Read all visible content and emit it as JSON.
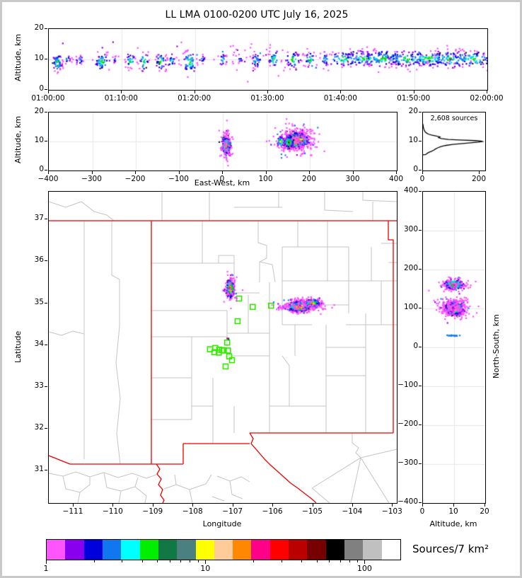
{
  "title": "LL LMA 0100-0200 UTC July 16, 2025",
  "colors": {
    "density_palette": [
      "#ff4dff",
      "#9100ee",
      "#0000dd",
      "#1a7cf0",
      "#00e0e0",
      "#00dd00",
      "#ffe800",
      "#ff8c00",
      "#ee1111"
    ],
    "state_border": "#ee0000",
    "county_line": "#c4c4c4",
    "station_marker": "#33ee00",
    "grid_line": "#e7e7e7",
    "frame": "#000000"
  },
  "colorbar": {
    "label": "Sources/7 km²",
    "scale": "log",
    "min": 1,
    "max": 166,
    "major_ticks": [
      1,
      10,
      100
    ],
    "major_labels": [
      "1",
      "10",
      "100"
    ],
    "minor_ticks": [
      2,
      3,
      4,
      5,
      6,
      7,
      8,
      9,
      20,
      30,
      40,
      50,
      60,
      70,
      80,
      90
    ],
    "segment_colors": [
      "#ff55ff",
      "#8800ee",
      "#0000dd",
      "#1177ee",
      "#00ffff",
      "#00ee00",
      "#117744",
      "#4a8080",
      "#ffff00",
      "#ffcc99",
      "#ff8800",
      "#ff0088",
      "#ff0000",
      "#bb0000",
      "#770000",
      "#000000",
      "#808080",
      "#c0c0c0",
      "#ffffff"
    ]
  },
  "chart_data": [
    {
      "id": "time-height-panel",
      "type": "scatter",
      "xlim": [
        0,
        60
      ],
      "ylim": [
        0,
        20
      ],
      "xticks": {
        "values": [
          0,
          10,
          20,
          30,
          40,
          50,
          60
        ],
        "labels": [
          "01:00:00",
          "01:10:00",
          "01:20:00",
          "01:30:00",
          "01:40:00",
          "01:50:00",
          "02:00:00"
        ]
      },
      "yticks": {
        "values": [
          0,
          10,
          20
        ],
        "labels": [
          "0",
          "10",
          "20"
        ]
      },
      "ylabel": "Altitude, km",
      "grid": {
        "x": [
          10,
          20,
          30,
          40,
          50
        ],
        "y": [
          10
        ]
      },
      "clusters": [
        {
          "x": 30,
          "y": 10.2,
          "sx": 16,
          "sy": 2.6,
          "n": 130,
          "kind": "halo"
        },
        {
          "x": 1.2,
          "y": 8.8,
          "sx": 0.3,
          "sy": 1.7,
          "n": 55,
          "cap": 5
        },
        {
          "x": 2.5,
          "y": 10,
          "sx": 0.3,
          "sy": 0.7,
          "n": 10,
          "cap": 3
        },
        {
          "x": 4.2,
          "y": 9.8,
          "sx": 0.25,
          "sy": 0.9,
          "n": 16,
          "cap": 4
        },
        {
          "x": 7.3,
          "y": 9.3,
          "sx": 0.5,
          "sy": 1.4,
          "n": 45,
          "cap": 5
        },
        {
          "x": 9,
          "y": 10,
          "sx": 0.15,
          "sy": 0.5,
          "n": 8,
          "cap": 3
        },
        {
          "x": 11.2,
          "y": 9.4,
          "sx": 0.3,
          "sy": 1.3,
          "n": 28,
          "cap": 5
        },
        {
          "x": 13,
          "y": 9.4,
          "sx": 0.35,
          "sy": 1.5,
          "n": 30,
          "cap": 5
        },
        {
          "x": 15.3,
          "y": 9.2,
          "sx": 0.4,
          "sy": 1.4,
          "n": 35,
          "cap": 5
        },
        {
          "x": 16.8,
          "y": 9.6,
          "sx": 0.25,
          "sy": 1.1,
          "n": 18,
          "cap": 4
        },
        {
          "x": 19.3,
          "y": 9,
          "sx": 0.5,
          "sy": 1.9,
          "n": 55,
          "cap": 5
        },
        {
          "x": 21,
          "y": 10.1,
          "sx": 0.2,
          "sy": 0.6,
          "n": 8,
          "cap": 3
        },
        {
          "x": 23.8,
          "y": 9.9,
          "sx": 0.3,
          "sy": 1,
          "n": 18,
          "cap": 4
        },
        {
          "x": 26.2,
          "y": 10,
          "sx": 0.2,
          "sy": 0.6,
          "n": 7,
          "cap": 3
        },
        {
          "x": 28.4,
          "y": 9.6,
          "sx": 0.4,
          "sy": 1.2,
          "n": 28,
          "cap": 4
        },
        {
          "x": 30.8,
          "y": 9.9,
          "sx": 0.4,
          "sy": 1.4,
          "n": 32,
          "cap": 5
        },
        {
          "x": 33.4,
          "y": 9.9,
          "sx": 0.5,
          "sy": 1.5,
          "n": 42,
          "cap": 5
        },
        {
          "x": 35.8,
          "y": 9.9,
          "sx": 0.4,
          "sy": 1.2,
          "n": 30,
          "cap": 5
        },
        {
          "x": 37.8,
          "y": 10,
          "sx": 0.3,
          "sy": 1,
          "n": 22,
          "cap": 4
        },
        {
          "x": 40.5,
          "y": 10.2,
          "sx": 1.2,
          "sy": 1.2,
          "n": 60,
          "cap": 5
        },
        {
          "x": 43,
          "y": 10.3,
          "sx": 1.5,
          "sy": 1.2,
          "n": 80,
          "cap": 5
        },
        {
          "x": 46,
          "y": 10.3,
          "sx": 1.5,
          "sy": 1.3,
          "n": 85,
          "cap": 5
        },
        {
          "x": 49,
          "y": 10.2,
          "sx": 1.5,
          "sy": 1.3,
          "n": 85,
          "cap": 5
        },
        {
          "x": 52,
          "y": 10.2,
          "sx": 1.5,
          "sy": 1.3,
          "n": 90,
          "cap": 5
        },
        {
          "x": 55,
          "y": 10.1,
          "sx": 1.5,
          "sy": 1.4,
          "n": 90,
          "cap": 5
        },
        {
          "x": 58,
          "y": 10.1,
          "sx": 1.4,
          "sy": 1.4,
          "n": 85,
          "cap": 5
        }
      ]
    },
    {
      "id": "eastwest-height-panel",
      "type": "scatter",
      "xlim": [
        -400,
        400
      ],
      "ylim": [
        0,
        20
      ],
      "xticks": {
        "values": [
          -400,
          -300,
          -200,
          -100,
          0,
          100,
          200,
          300,
          400
        ],
        "labels": [
          "−400",
          "−300",
          "−200",
          "−100",
          "0",
          "100",
          "200",
          "300",
          "400"
        ]
      },
      "yticks": {
        "values": [
          0,
          10,
          20
        ],
        "labels": [
          "0",
          "10",
          "20"
        ]
      },
      "xlabel": "East-West, km",
      "ylabel": "Altitude, km",
      "grid": {
        "x": [
          -300,
          -200,
          -100,
          0,
          100,
          200,
          300
        ],
        "y": [
          10
        ]
      },
      "clusters": [
        {
          "x": 8,
          "y": 8.7,
          "sx": 5,
          "sy": 1.5,
          "n": 240,
          "cap": 7
        },
        {
          "x": 8,
          "y": 9.4,
          "sx": 8,
          "sy": 3.4,
          "n": 70,
          "kind": "halo"
        },
        {
          "x": 170,
          "y": 10.4,
          "sx": 14,
          "sy": 1.3,
          "n": 650,
          "cap": 8
        },
        {
          "x": 168,
          "y": 10.5,
          "sx": 24,
          "sy": 2.6,
          "n": 220,
          "kind": "halo"
        },
        {
          "x": 133,
          "y": 10,
          "sx": 4,
          "sy": 0.9,
          "n": 45,
          "cap": 6
        },
        {
          "x": 152,
          "y": 9.8,
          "sx": 6,
          "sy": 1.2,
          "n": 80,
          "cap": 6
        }
      ]
    },
    {
      "id": "altitude-histogram-panel",
      "type": "line",
      "annotation": "2,608 sources",
      "total_sources": 2608,
      "xlim": [
        0,
        220
      ],
      "ylim": [
        0,
        20
      ],
      "xticks": {
        "values": [
          0,
          200
        ],
        "labels": [
          "0",
          "200"
        ]
      },
      "yticks": {
        "values": [
          0,
          10,
          20
        ],
        "labels": [
          "0",
          "10",
          "20"
        ]
      },
      "grid": {
        "x": [],
        "y": []
      },
      "points_count_alt": [
        [
          0,
          5.4
        ],
        [
          10,
          5.5
        ],
        [
          12,
          5.7
        ],
        [
          16,
          6.0
        ],
        [
          22,
          6.3
        ],
        [
          30,
          6.6
        ],
        [
          38,
          7.0
        ],
        [
          44,
          7.4
        ],
        [
          52,
          7.8
        ],
        [
          62,
          8.2
        ],
        [
          78,
          8.6
        ],
        [
          105,
          9.0
        ],
        [
          140,
          9.3
        ],
        [
          175,
          9.6
        ],
        [
          195,
          9.8
        ],
        [
          210,
          10.0
        ],
        [
          205,
          10.15
        ],
        [
          185,
          10.3
        ],
        [
          130,
          10.5
        ],
        [
          90,
          10.7
        ],
        [
          65,
          11.0
        ],
        [
          55,
          11.3
        ],
        [
          60,
          11.6
        ],
        [
          45,
          11.9
        ],
        [
          30,
          12.2
        ],
        [
          20,
          12.5
        ],
        [
          13,
          12.9
        ],
        [
          8,
          13.3
        ],
        [
          5,
          13.8
        ],
        [
          3,
          14.3
        ],
        [
          1,
          15.0
        ],
        [
          0,
          16.0
        ]
      ]
    },
    {
      "id": "map-panel",
      "type": "scatter",
      "xlim": [
        -111.62,
        -102.9
      ],
      "ylim": [
        30.23,
        37.66
      ],
      "xticks": {
        "values": [
          -111,
          -110,
          -109,
          -108,
          -107,
          -106,
          -105,
          -104,
          -103
        ],
        "labels": [
          "−111",
          "−110",
          "−109",
          "−108",
          "−107",
          "−106",
          "−105",
          "−104",
          "−103"
        ]
      },
      "yticks": {
        "values": [
          31,
          32,
          33,
          34,
          35,
          36,
          37
        ],
        "labels": [
          "31",
          "32",
          "33",
          "34",
          "35",
          "36",
          "37"
        ]
      },
      "xlabel": "Longitude",
      "ylabel": "Latitude",
      "grid": {
        "x": [],
        "y": []
      },
      "clusters": [
        {
          "x": -107.07,
          "y": 35.35,
          "sx": 0.05,
          "sy": 0.11,
          "n": 200,
          "cap": 8
        },
        {
          "x": -107.07,
          "y": 35.3,
          "sx": 0.1,
          "sy": 0.18,
          "n": 50,
          "kind": "halo"
        },
        {
          "x": -105.35,
          "y": 34.92,
          "sx": 0.14,
          "sy": 0.06,
          "n": 450,
          "cap": 8
        },
        {
          "x": -105.02,
          "y": 35.0,
          "sx": 0.1,
          "sy": 0.045,
          "n": 220,
          "cap": 7
        },
        {
          "x": -105.2,
          "y": 34.95,
          "sx": 0.3,
          "sy": 0.09,
          "n": 130,
          "kind": "halo"
        },
        {
          "x": -105.75,
          "y": 34.9,
          "sx": 0.06,
          "sy": 0.03,
          "n": 25,
          "kind": "halo"
        },
        {
          "x": -107.12,
          "y": 34.14,
          "sx": 0.01,
          "sy": 0.006,
          "n": 2,
          "kind": "mono",
          "color": "#2222cc"
        },
        {
          "x": -107.15,
          "y": 34.15,
          "sx": 0.006,
          "sy": 0.004,
          "n": 1,
          "kind": "mono",
          "color": "#cc0000"
        }
      ],
      "stations_lon_lat": [
        [
          -106.85,
          35.11
        ],
        [
          -106.51,
          34.91
        ],
        [
          -106.05,
          34.94
        ],
        [
          -106.89,
          34.57
        ],
        [
          -107.15,
          34.06
        ],
        [
          -107.45,
          33.93
        ],
        [
          -107.58,
          33.9
        ],
        [
          -107.35,
          33.89
        ],
        [
          -107.24,
          33.87
        ],
        [
          -107.13,
          33.87
        ],
        [
          -107.47,
          33.83
        ],
        [
          -107.36,
          33.82
        ],
        [
          -107.28,
          33.88
        ],
        [
          -107.1,
          33.73
        ],
        [
          -107.03,
          33.64
        ],
        [
          -107.19,
          33.49
        ]
      ]
    },
    {
      "id": "northsouth-height-panel",
      "type": "scatter",
      "xlim": [
        0,
        20
      ],
      "ylim": [
        -400,
        400
      ],
      "xticks": {
        "values": [
          0,
          10,
          20
        ],
        "labels": [
          "0",
          "10",
          "20"
        ]
      },
      "yticks": {
        "values": [
          -400,
          -300,
          -200,
          -100,
          0,
          100,
          200,
          300,
          400
        ],
        "labels": [
          "−400",
          "−300",
          "−200",
          "−100",
          "0",
          "100",
          "200",
          "300",
          "400"
        ]
      },
      "xlabel": "Altitude, km",
      "ylabel": "North-South, km",
      "grid": {
        "x": [
          10
        ],
        "y": [
          -300,
          -200,
          -100,
          0,
          100,
          200,
          300
        ]
      },
      "clusters": [
        {
          "x": 10,
          "y": 162,
          "sx": 1.5,
          "sy": 6,
          "n": 230,
          "cap": 7
        },
        {
          "x": 10,
          "y": 160,
          "sx": 2.6,
          "sy": 11,
          "n": 70,
          "kind": "halo"
        },
        {
          "x": 10,
          "y": 100,
          "sx": 1.5,
          "sy": 8,
          "n": 650,
          "cap": 8
        },
        {
          "x": 10,
          "y": 103,
          "sx": 2.8,
          "sy": 13,
          "n": 200,
          "kind": "halo"
        },
        {
          "x": 9.8,
          "y": 30,
          "sx": 1.1,
          "sy": 0.8,
          "n": 22,
          "kind": "mono",
          "color": "#1a7cf0"
        }
      ]
    }
  ]
}
